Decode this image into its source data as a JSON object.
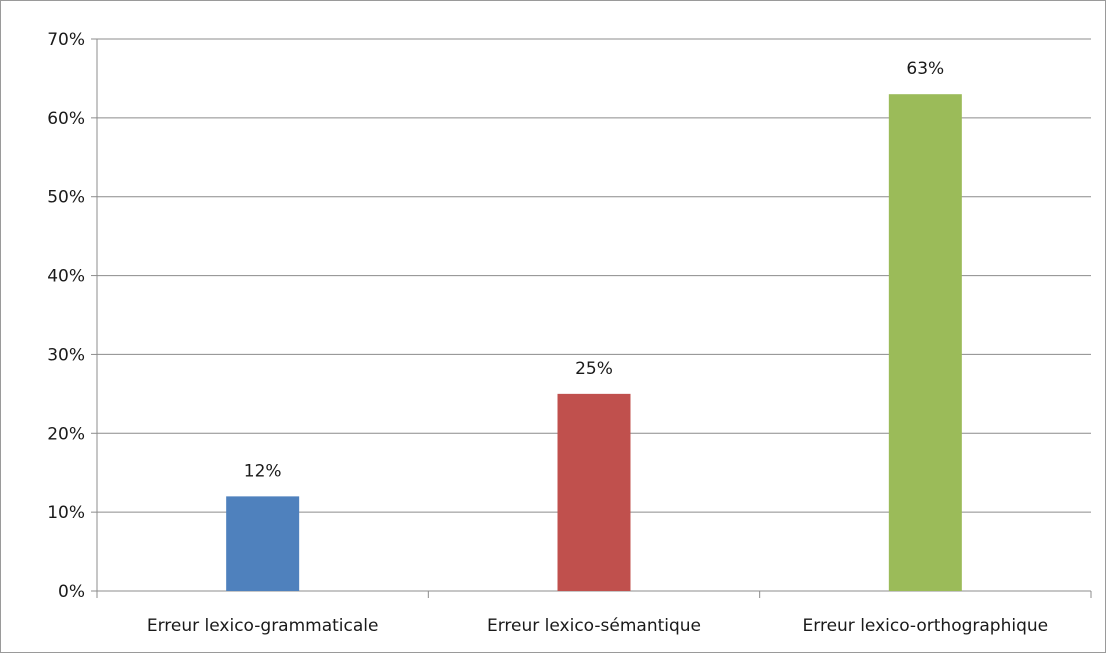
{
  "chart_data": {
    "type": "bar",
    "categories": [
      "Erreur lexico-grammaticale",
      "Erreur lexico-sémantique",
      "Erreur lexico-orthographique"
    ],
    "values": [
      12,
      25,
      63
    ],
    "data_labels": [
      "12%",
      "25%",
      "63%"
    ],
    "colors": [
      "#4F81BD",
      "#C0504D",
      "#9BBB59"
    ],
    "title": "",
    "xlabel": "",
    "ylabel": "",
    "ylim": [
      0,
      70
    ],
    "yticks": [
      0,
      10,
      20,
      30,
      40,
      50,
      60,
      70
    ],
    "ytick_labels": [
      "0%",
      "10%",
      "20%",
      "30%",
      "40%",
      "50%",
      "60%",
      "70%"
    ],
    "grid": true,
    "legend": "none"
  }
}
